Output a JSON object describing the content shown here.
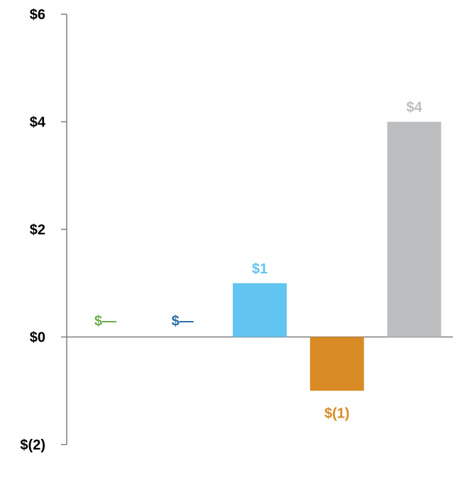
{
  "chart_data": {
    "type": "bar",
    "categories": [
      "",
      "",
      "",
      "",
      ""
    ],
    "values": [
      0,
      0,
      1,
      -1,
      4
    ],
    "data_labels": [
      "$—",
      "$—",
      "$1",
      "$(1)",
      "$4"
    ],
    "colors": [
      "#6ab04c",
      "#2e6da4",
      "#62c4f0",
      "#d98b25",
      "#bdbec0"
    ],
    "ylim": [
      -2,
      6
    ],
    "yticks": [
      6,
      4,
      2,
      0,
      -2
    ],
    "ytick_labels": [
      "$6",
      "$4",
      "$2",
      "$0",
      "$(2)"
    ],
    "title": "",
    "xlabel": "",
    "ylabel": "",
    "grid": false,
    "legend": false
  }
}
